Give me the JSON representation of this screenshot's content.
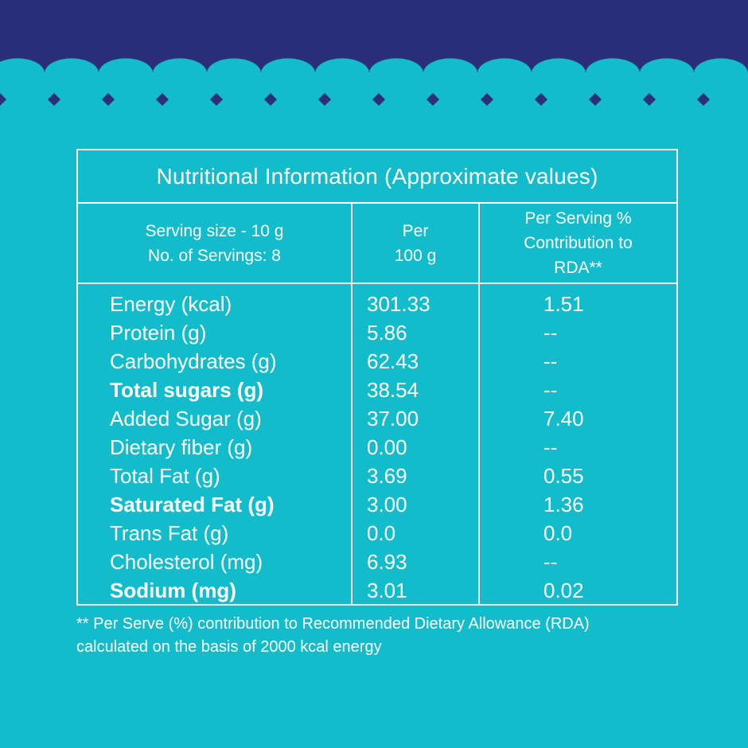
{
  "colors": {
    "background": "#12bccb",
    "header_band": "#2b2e78",
    "lines_text": "#ffffff"
  },
  "decoration": {
    "header_pattern": "scallop-wave-with-diamonds"
  },
  "table": {
    "title": "Nutritional Information (Approximate values)",
    "header": {
      "col1": [
        "Serving size - 10 g",
        "No. of Servings: 8"
      ],
      "col2": [
        "Per",
        "100 g"
      ],
      "col3": [
        "Per Serving %",
        "Contribution to",
        "RDA**"
      ]
    },
    "rows": [
      {
        "name": "Energy (kcal)",
        "per100": "301.33",
        "rda": "1.51",
        "bold": false
      },
      {
        "name": "Protein (g)",
        "per100": "5.86",
        "rda": "--",
        "bold": false
      },
      {
        "name": "Carbohydrates (g)",
        "per100": "62.43",
        "rda": "--",
        "bold": false
      },
      {
        "name": "Total sugars (g)",
        "per100": "38.54",
        "rda": "--",
        "bold": true
      },
      {
        "name": "Added Sugar (g)",
        "per100": "37.00",
        "rda": "7.40",
        "bold": false
      },
      {
        "name": "Dietary fiber (g)",
        "per100": "0.00",
        "rda": "--",
        "bold": false
      },
      {
        "name": "Total Fat (g)",
        "per100": "3.69",
        "rda": "0.55",
        "bold": false
      },
      {
        "name": "Saturated Fat (g)",
        "per100": "3.00",
        "rda": "1.36",
        "bold": true
      },
      {
        "name": "Trans Fat (g)",
        "per100": "0.0",
        "rda": "0.0",
        "bold": false
      },
      {
        "name": "Cholesterol (mg)",
        "per100": "6.93",
        "rda": "--",
        "bold": false
      },
      {
        "name": "Sodium (mg)",
        "per100": "3.01",
        "rda": "0.02",
        "bold": true
      }
    ]
  },
  "footnote": [
    "** Per Serve (%) contribution to Recommended Dietary Allowance (RDA)",
    "calculated on the basis of 2000 kcal energy"
  ]
}
